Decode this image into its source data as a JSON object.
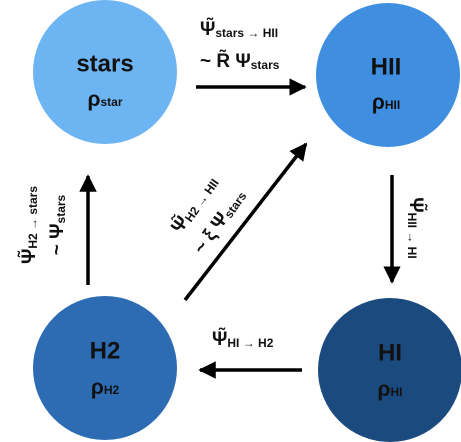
{
  "nodes": [
    {
      "name": "stars",
      "rho": "ρ",
      "sub": "star"
    },
    {
      "name": "HII",
      "rho": "ρ",
      "sub": "HII"
    },
    {
      "name": "H2",
      "rho": "ρ",
      "sub": "H2"
    },
    {
      "name": "HI",
      "rho": "ρ",
      "sub": "HI"
    }
  ],
  "edges": [
    {
      "lines": [
        {
          "main": "Ψ̃",
          "sub": "stars → HII"
        },
        {
          "main": "~ R̃ Ψ",
          "sub": "stars"
        }
      ]
    },
    {
      "lines": [
        {
          "main": "Ψ̃",
          "sub": "HII → HI"
        }
      ]
    },
    {
      "lines": [
        {
          "main": "Ψ̃",
          "sub": "HI → H2"
        }
      ]
    },
    {
      "lines": [
        {
          "main": "Ψ̃",
          "sub": "H2 → stars"
        },
        {
          "main": "~ Ψ",
          "sub": "stars"
        }
      ]
    },
    {
      "lines": [
        {
          "main": "Ψ̃",
          "sub": "H2 → HII"
        },
        {
          "main": "~ ξ Ψ",
          "sub": "stars"
        }
      ]
    }
  ]
}
